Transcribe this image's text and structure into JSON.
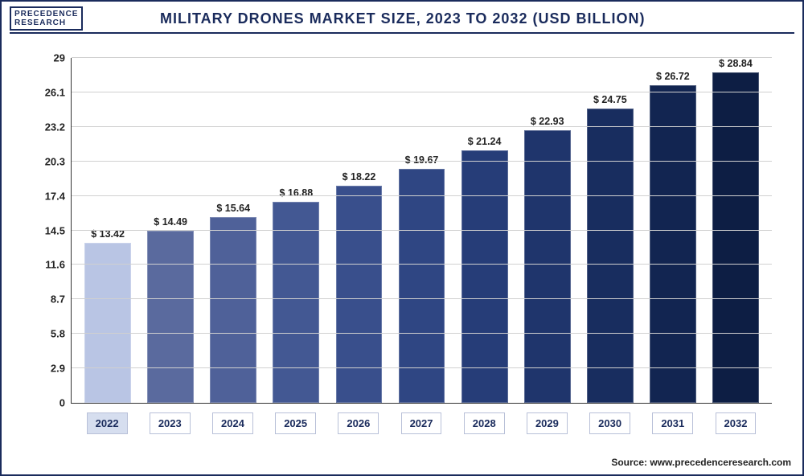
{
  "logo": {
    "line1": "PRECEDENCE",
    "line2": "RESEARCH"
  },
  "title": "MILITARY DRONES MARKET SIZE, 2023 TO 2032 (USD BILLION)",
  "source_label": "Source: www.precedenceresearch.com",
  "chart": {
    "type": "bar",
    "ylim": [
      0,
      29
    ],
    "yticks": [
      0,
      2.9,
      5.8,
      8.7,
      11.6,
      14.5,
      17.4,
      20.3,
      23.2,
      26.1,
      29
    ],
    "ytick_labels": [
      "0",
      "2.9",
      "5.8",
      "8.7",
      "11.6",
      "14.5",
      "17.4",
      "20.3",
      "23.2",
      "26.1",
      "29"
    ],
    "grid_color": "#d0d0d0",
    "axis_color": "#333333",
    "background_color": "#ffffff",
    "bar_width": 0.74,
    "value_prefix": "$ ",
    "label_fontsize": 13,
    "value_fontsize": 12.5,
    "categories": [
      "2022",
      "2023",
      "2024",
      "2025",
      "2026",
      "2027",
      "2028",
      "2029",
      "2030",
      "2031",
      "2032"
    ],
    "values": [
      13.42,
      14.49,
      15.64,
      16.88,
      18.22,
      19.67,
      21.24,
      22.93,
      24.75,
      26.72,
      28.84
    ],
    "bar_colors": [
      "#b9c5e4",
      "#5a6a9e",
      "#4f6199",
      "#435893",
      "#394f8c",
      "#2f4683",
      "#263d78",
      "#1f356c",
      "#182d5f",
      "#122551",
      "#0d1e44"
    ],
    "highlight_index": 0
  }
}
